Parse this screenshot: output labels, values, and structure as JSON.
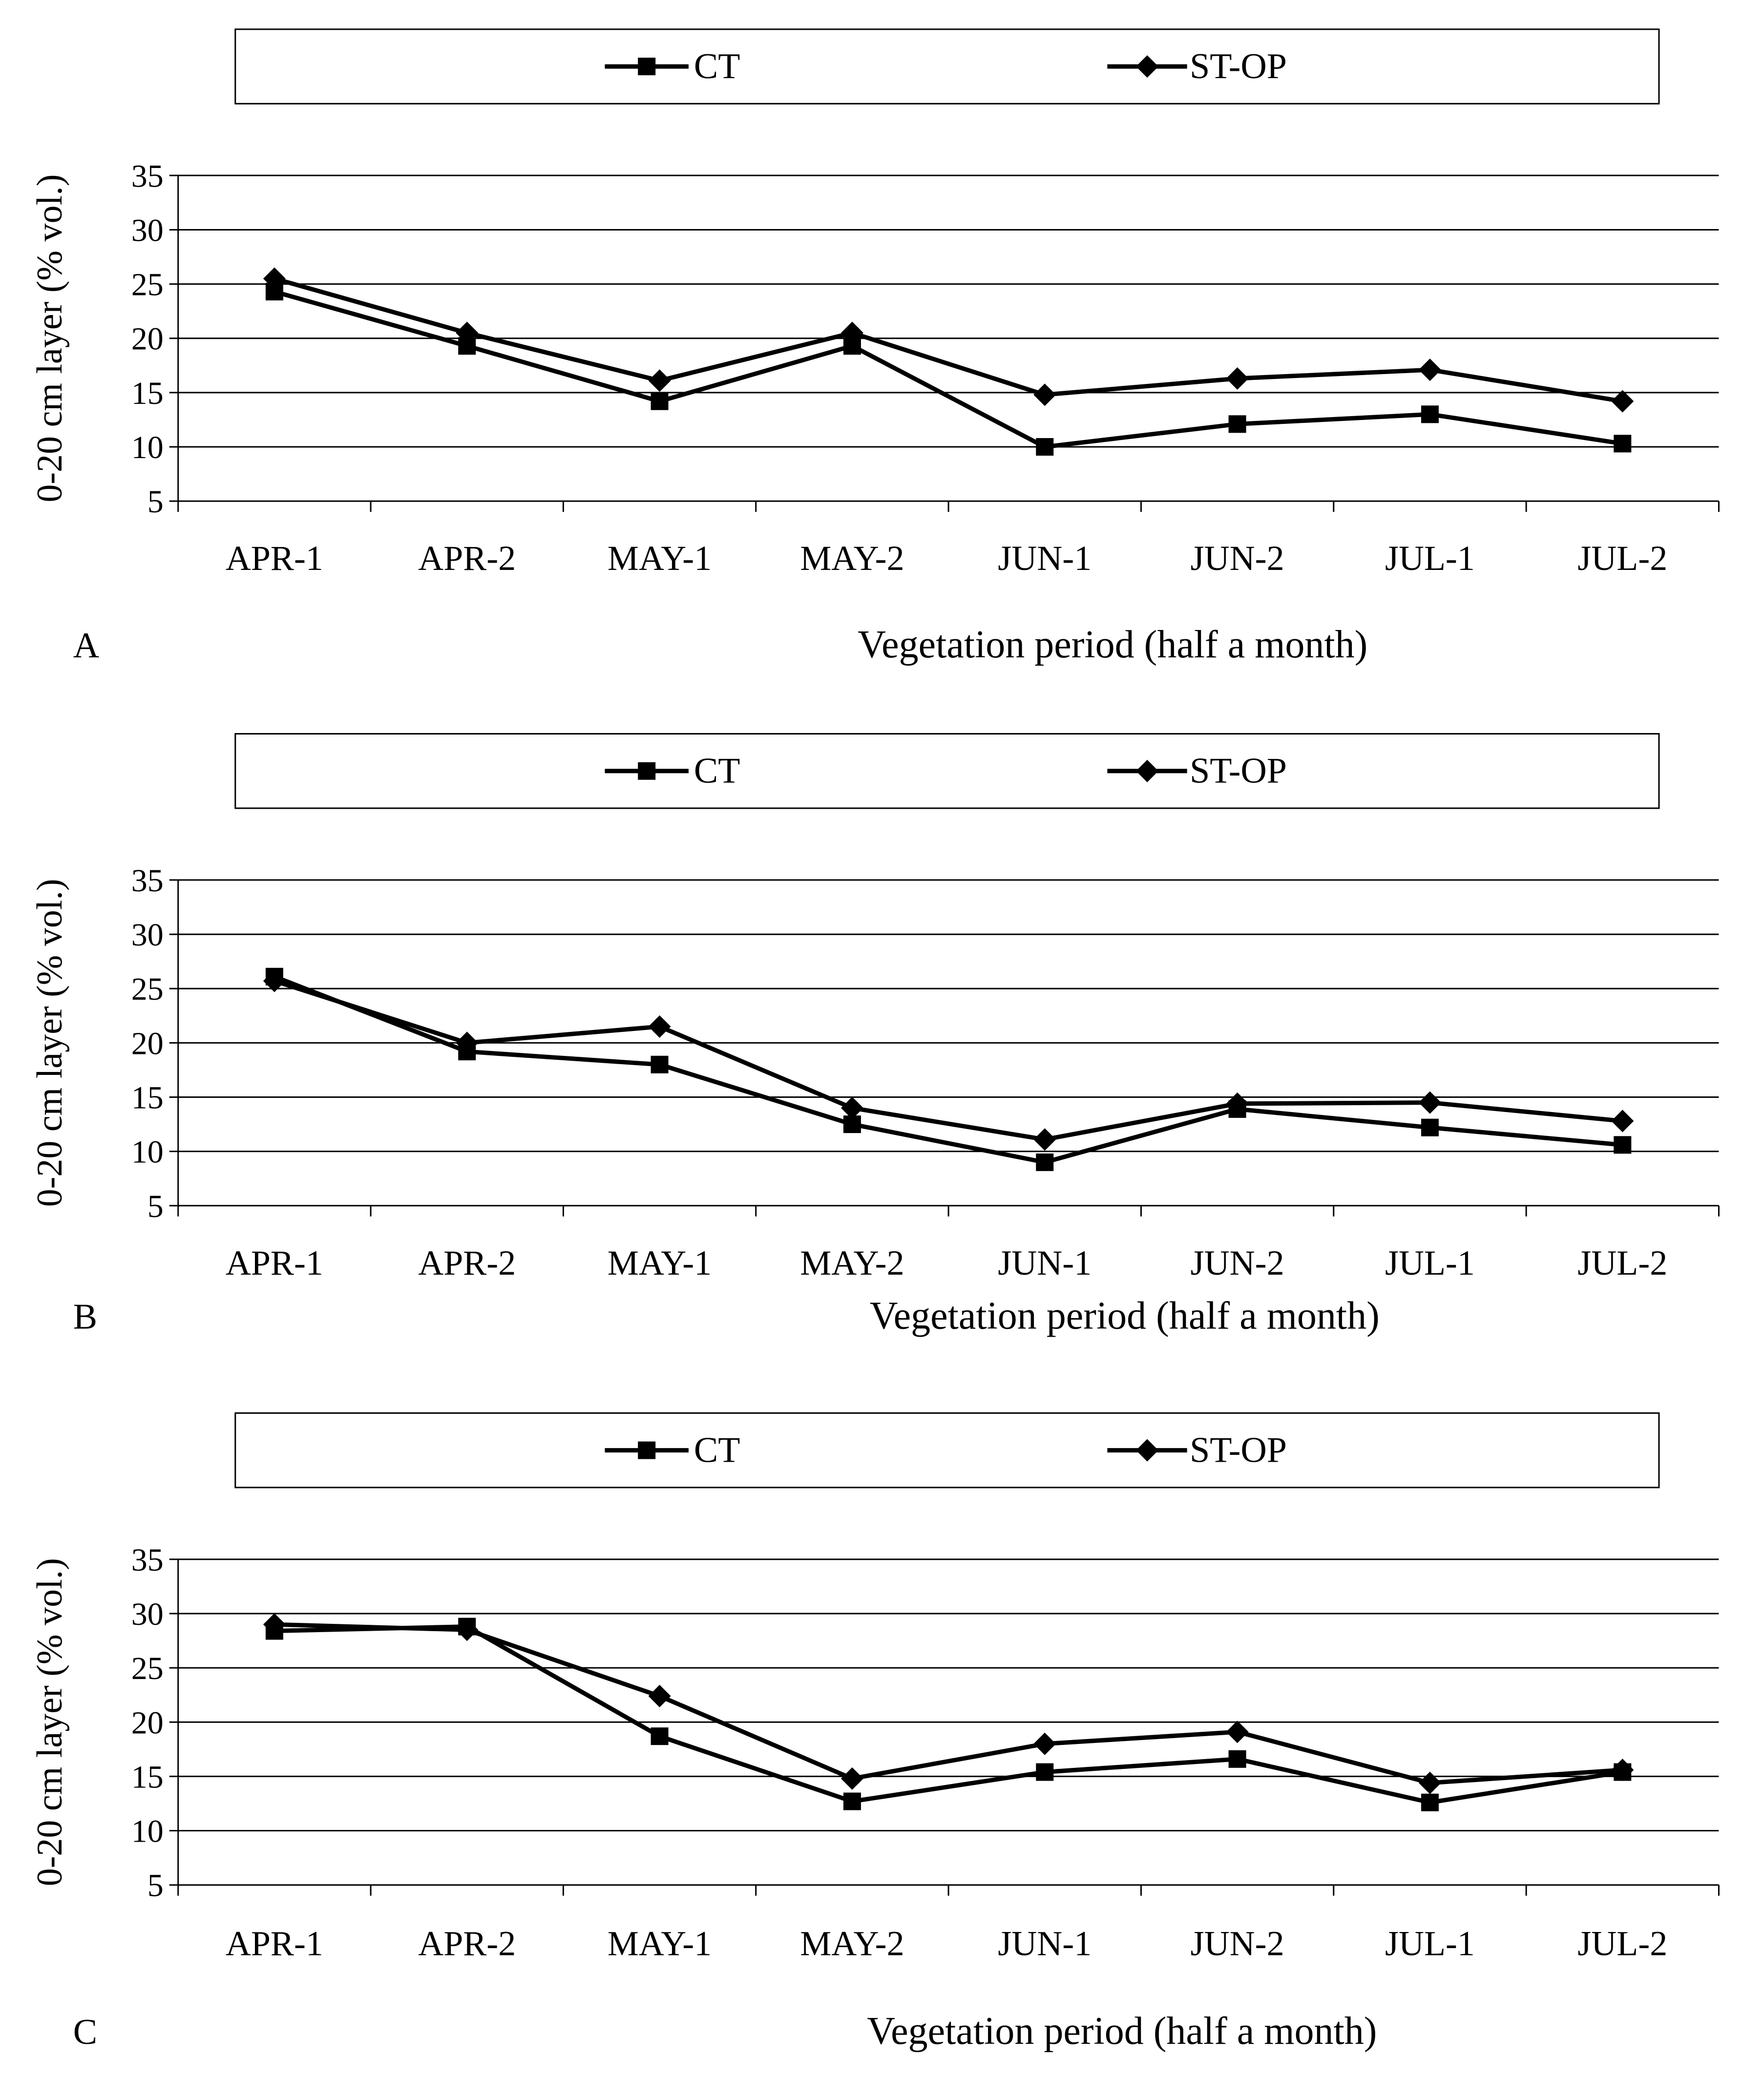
{
  "legend": [
    {
      "name": "CT",
      "marker": "square"
    },
    {
      "name": "ST-OP",
      "marker": "diamond"
    }
  ],
  "colors": {
    "line": "#000000",
    "grid": "#000000",
    "background": "#ffffff"
  },
  "chart_data": [
    {
      "type": "line",
      "panel": "A",
      "categories": [
        "APR-1",
        "APR-2",
        "MAY-1",
        "MAY-2",
        "JUN-1",
        "JUN-2",
        "JUL-1",
        "JUL-2"
      ],
      "series": [
        {
          "name": "CT",
          "values": [
            24.3,
            19.3,
            14.2,
            19.3,
            10.0,
            12.1,
            13.0,
            10.3
          ]
        },
        {
          "name": "ST-OP",
          "values": [
            25.5,
            20.5,
            16.1,
            20.5,
            14.8,
            16.3,
            17.1,
            14.2
          ]
        }
      ],
      "ylabel": "0-20 cm layer (% vol.)",
      "xlabel": "Vegetation period (half a month)",
      "ylim": [
        5,
        35
      ],
      "yticks": [
        5,
        10,
        15,
        20,
        25,
        30,
        35
      ],
      "grid": true,
      "legend_position": "top"
    },
    {
      "type": "line",
      "panel": "B",
      "categories": [
        "APR-1",
        "APR-2",
        "MAY-1",
        "MAY-2",
        "JUN-1",
        "JUN-2",
        "JUL-1",
        "JUL-2"
      ],
      "series": [
        {
          "name": "CT",
          "values": [
            26.1,
            19.2,
            18.0,
            12.5,
            9.0,
            13.9,
            12.2,
            10.6
          ]
        },
        {
          "name": "ST-OP",
          "values": [
            25.7,
            20.0,
            21.5,
            14.0,
            11.1,
            14.4,
            14.5,
            12.8
          ]
        }
      ],
      "ylabel": "0-20 cm layer (% vol.)",
      "xlabel": "Vegetation period (half a month)",
      "ylim": [
        5,
        35
      ],
      "yticks": [
        5,
        10,
        15,
        20,
        25,
        30,
        35
      ],
      "grid": true,
      "legend_position": "top"
    },
    {
      "type": "line",
      "panel": "C",
      "categories": [
        "APR-1",
        "APR-2",
        "MAY-1",
        "MAY-2",
        "JUN-1",
        "JUN-2",
        "JUL-1",
        "JUL-2"
      ],
      "series": [
        {
          "name": "CT",
          "values": [
            28.4,
            28.8,
            18.7,
            12.7,
            15.4,
            16.6,
            12.6,
            15.4
          ]
        },
        {
          "name": "ST-OP",
          "values": [
            29.0,
            28.5,
            22.4,
            14.8,
            18.0,
            19.1,
            14.4,
            15.6
          ]
        }
      ],
      "ylabel": "0-20 cm layer (% vol.)",
      "xlabel": "Vegetation period (half a month)",
      "ylim": [
        5,
        35
      ],
      "yticks": [
        5,
        10,
        15,
        20,
        25,
        30,
        35
      ],
      "grid": true,
      "legend_position": "top"
    }
  ]
}
